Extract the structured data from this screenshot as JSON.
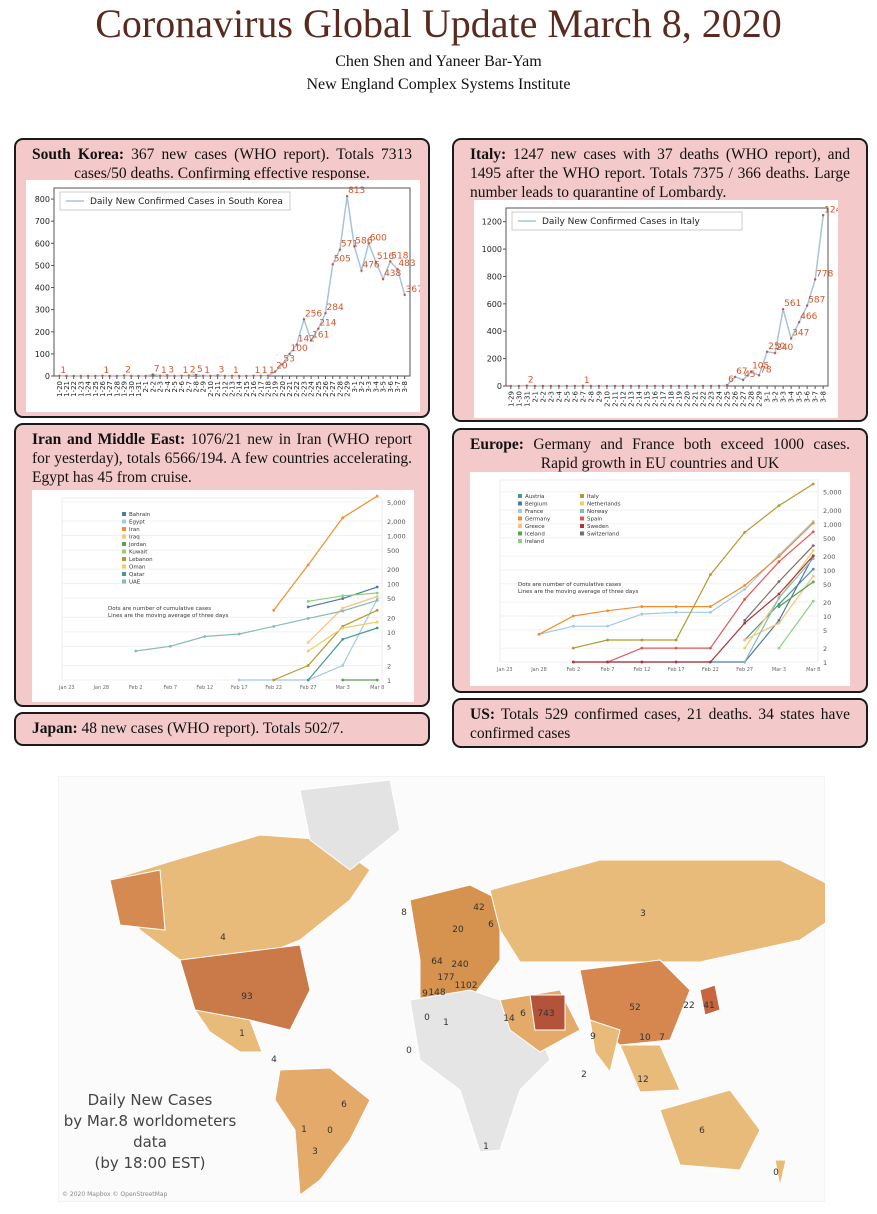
{
  "header": {
    "title": "Coronavirus Global Update March 8, 2020",
    "authors": "Chen Shen and Yaneer Bar-Yam",
    "institute": "New England Complex Systems Institute"
  },
  "panels": [
    {
      "heading": "South Korea:",
      "text": "367 new cases (WHO report). Totals 7313 cases/50 deaths. Confirming effective response."
    },
    {
      "heading": "Italy:",
      "text": "1247 new cases with 37 deaths (WHO report), and 1495 after the WHO report. Totals 7375 / 366 deaths. Large number leads to quarantine of Lombardy."
    },
    {
      "heading": "Iran and Middle East:",
      "text": "1076/21 new in Iran (WHO report for yesterday), totals 6566/194. A few countries accelerating. Egypt has 45 from cruise."
    },
    {
      "heading": "Europe:",
      "text": "Germany and France both exceed 1000 cases. Rapid growth in EU countries and UK"
    },
    {
      "heading": "Japan:",
      "text": "48 new cases (WHO report). Totals 502/7."
    },
    {
      "heading": "US:",
      "text": "Totals 529 confirmed cases, 21 deaths. 34 states have confirmed cases"
    }
  ],
  "chart_data": [
    {
      "type": "line",
      "categories": [
        "1-20",
        "1-21",
        "1-22",
        "1-23",
        "1-24",
        "1-25",
        "1-26",
        "1-27",
        "1-28",
        "1-29",
        "1-30",
        "1-31",
        "2-1",
        "2-2",
        "2-3",
        "2-4",
        "2-5",
        "2-6",
        "2-7",
        "2-8",
        "2-9",
        "2-10",
        "2-11",
        "2-12",
        "2-13",
        "2-14",
        "2-15",
        "2-16",
        "2-17",
        "2-18",
        "2-19",
        "2-20",
        "2-21",
        "2-22",
        "2-23",
        "2-24",
        "2-25",
        "2-26",
        "2-27",
        "2-28",
        "2-29",
        "3-1",
        "3-2",
        "3-3",
        "3-4",
        "3-5",
        "3-6",
        "3-7",
        "3-8"
      ],
      "series": [
        {
          "name": "Daily New Confirmed Cases in South Korea",
          "color": "#a7c3dc",
          "label_color": "#d4562b",
          "values": [
            1,
            0,
            0,
            0,
            0,
            0,
            1,
            0,
            0,
            2,
            0,
            0,
            0,
            7,
            1,
            3,
            0,
            1,
            2,
            5,
            1,
            0,
            3,
            0,
            1,
            0,
            0,
            1,
            1,
            1,
            20,
            53,
            100,
            142,
            256,
            161,
            214,
            284,
            505,
            571,
            813,
            586,
            476,
            600,
            516,
            438,
            518,
            483,
            367
          ]
        }
      ],
      "ylim": [
        0,
        850
      ],
      "yticks": [
        0,
        100,
        200,
        300,
        400,
        500,
        600,
        700,
        800
      ],
      "log_scale": false,
      "legend": "upper left"
    },
    {
      "type": "line",
      "categories": [
        "1-29",
        "1-30",
        "1-31",
        "2-1",
        "2-2",
        "2-3",
        "2-4",
        "2-5",
        "2-6",
        "2-7",
        "2-8",
        "2-9",
        "2-10",
        "2-11",
        "2-12",
        "2-13",
        "2-14",
        "2-15",
        "2-16",
        "2-17",
        "2-18",
        "2-19",
        "2-20",
        "2-21",
        "2-22",
        "2-23",
        "2-24",
        "2-25",
        "2-26",
        "2-27",
        "2-28",
        "2-29",
        "3-1",
        "3-2",
        "3-3",
        "3-4",
        "3-5",
        "3-6",
        "3-7",
        "3-8"
      ],
      "series": [
        {
          "name": "Daily New Confirmed Cases in Italy",
          "color": "#a7c3dc",
          "label_color": "#d4562b",
          "values": [
            0,
            0,
            2,
            0,
            0,
            0,
            0,
            0,
            0,
            1,
            0,
            0,
            0,
            0,
            0,
            0,
            0,
            0,
            0,
            0,
            0,
            0,
            0,
            0,
            0,
            0,
            0,
            6,
            67,
            45,
            105,
            78,
            250,
            240,
            561,
            347,
            466,
            587,
            778,
            1247
          ]
        }
      ],
      "ylim": [
        0,
        1300
      ],
      "yticks": [
        0,
        200,
        400,
        600,
        800,
        1000,
        1200
      ],
      "log_scale": false,
      "legend": "upper left"
    },
    {
      "type": "line",
      "log_scale": true,
      "axis_side": "right",
      "legend": "upper left",
      "annotation": [
        "Dots are number of cumulative cases",
        "Lines are the moving average of three days"
      ],
      "categories": [
        "Jan 23",
        "Jan 28",
        "Feb 2",
        "Feb 7",
        "Feb 12",
        "Feb 17",
        "Feb 22",
        "Feb 27",
        "Mar 3",
        "Mar 8"
      ],
      "ylim": [
        1,
        6000
      ],
      "yticks": [
        1,
        2,
        5,
        10,
        20,
        50,
        100,
        200,
        500,
        {
          "value": 1000,
          "label": "1,000"
        },
        {
          "value": 2000,
          "label": "2,000"
        },
        {
          "value": 5000,
          "label": "5,000"
        }
      ],
      "series": [
        {
          "name": "Bahrain",
          "color": "#4e79a7",
          "values": [
            null,
            null,
            null,
            null,
            null,
            null,
            null,
            33,
            49,
            85
          ]
        },
        {
          "name": "Egypt",
          "color": "#a0cbe8",
          "values": [
            null,
            null,
            null,
            null,
            null,
            1,
            1,
            1,
            2,
            48
          ]
        },
        {
          "name": "Iran",
          "color": "#f28e2b",
          "values": [
            null,
            null,
            null,
            null,
            null,
            null,
            28,
            245,
            2336,
            6566
          ]
        },
        {
          "name": "Iraq",
          "color": "#ffbe7d",
          "values": [
            null,
            null,
            null,
            null,
            null,
            null,
            null,
            6,
            31,
            54
          ]
        },
        {
          "name": "Jordan",
          "color": "#59a14f",
          "values": [
            null,
            null,
            null,
            null,
            null,
            null,
            null,
            null,
            1,
            1
          ]
        },
        {
          "name": "Kuwait",
          "color": "#8cd17d",
          "values": [
            null,
            null,
            null,
            null,
            null,
            null,
            null,
            43,
            56,
            64
          ]
        },
        {
          "name": "Lebanon",
          "color": "#b6992d",
          "values": [
            null,
            null,
            null,
            null,
            null,
            null,
            1,
            2,
            13,
            28
          ]
        },
        {
          "name": "Oman",
          "color": "#f1ce63",
          "values": [
            null,
            null,
            null,
            null,
            null,
            null,
            null,
            4,
            12,
            16
          ]
        },
        {
          "name": "Qatar",
          "color": "#499894",
          "values": [
            null,
            null,
            null,
            null,
            null,
            null,
            null,
            1,
            7,
            12
          ]
        },
        {
          "name": "UAE",
          "color": "#86bcb6",
          "values": [
            null,
            null,
            4,
            5,
            8,
            9,
            13,
            19,
            27,
            45
          ]
        }
      ]
    },
    {
      "type": "line",
      "log_scale": true,
      "axis_side": "right",
      "legend": "upper left",
      "annotation": [
        "Dots are number of cumulative cases",
        "Lines are the moving average of three days"
      ],
      "categories": [
        "Jan 23",
        "Jan 28",
        "Feb 2",
        "Feb 7",
        "Feb 12",
        "Feb 17",
        "Feb 22",
        "Feb 27",
        "Mar 3",
        "Mar 8"
      ],
      "ylim": [
        1,
        9000
      ],
      "yticks": [
        1,
        2,
        5,
        10,
        20,
        50,
        100,
        200,
        500,
        {
          "value": 1000,
          "label": "1,000"
        },
        {
          "value": 2000,
          "label": "2,000"
        },
        {
          "value": 5000,
          "label": "5,000"
        }
      ],
      "series": [
        {
          "name": "Austria",
          "color": "#499894",
          "values": [
            null,
            null,
            null,
            null,
            null,
            null,
            null,
            3,
            18,
            104
          ]
        },
        {
          "name": "Belgium",
          "color": "#4e79a7",
          "values": [
            null,
            null,
            null,
            1,
            1,
            1,
            1,
            1,
            8,
            200
          ]
        },
        {
          "name": "France",
          "color": "#a0cbe8",
          "values": [
            null,
            4,
            6,
            6,
            11,
            12,
            12,
            38,
            212,
            1126
          ]
        },
        {
          "name": "Germany",
          "color": "#f28e2b",
          "values": [
            null,
            4,
            10,
            13,
            16,
            16,
            16,
            46,
            196,
            1040
          ]
        },
        {
          "name": "Greece",
          "color": "#ffbe7d",
          "values": [
            null,
            null,
            null,
            null,
            null,
            null,
            null,
            3,
            7,
            73
          ]
        },
        {
          "name": "Iceland",
          "color": "#59a14f",
          "values": [
            null,
            null,
            null,
            null,
            null,
            null,
            null,
            null,
            16,
            55
          ]
        },
        {
          "name": "Ireland",
          "color": "#8cd17d",
          "values": [
            null,
            null,
            null,
            null,
            null,
            null,
            null,
            null,
            2,
            21
          ]
        },
        {
          "name": "Italy",
          "color": "#b6992d",
          "values": [
            null,
            null,
            2,
            3,
            3,
            3,
            79,
            655,
            2502,
            7375
          ]
        },
        {
          "name": "Netherlands",
          "color": "#f1ce63",
          "values": [
            null,
            null,
            null,
            null,
            null,
            null,
            null,
            2,
            24,
            265
          ]
        },
        {
          "name": "Norway",
          "color": "#86bcb6",
          "values": [
            null,
            null,
            null,
            null,
            null,
            null,
            null,
            1,
            25,
            176
          ]
        },
        {
          "name": "Spain",
          "color": "#e15759",
          "values": [
            null,
            null,
            1,
            1,
            2,
            2,
            2,
            23,
            151,
            673
          ]
        },
        {
          "name": "Sweden",
          "color": "#b0343c",
          "values": [
            null,
            null,
            1,
            1,
            1,
            1,
            1,
            7,
            30,
            203
          ]
        },
        {
          "name": "Switzerland",
          "color": "#79706e",
          "values": [
            null,
            null,
            null,
            null,
            null,
            null,
            null,
            8,
            56,
            337
          ]
        }
      ]
    }
  ],
  "map": {
    "caption": [
      "Daily New Cases",
      "by Mar.8 worldometers",
      "data",
      "(by 18:00 EST)"
    ],
    "attribution": "© 2020 Mapbox © OpenStreetMap",
    "labels": [
      "3",
      "4",
      "93",
      "8",
      "42",
      "20",
      "6",
      "64",
      "240",
      "177",
      "1102",
      "148",
      "9",
      "52",
      "743",
      "22",
      "41",
      "1",
      "0",
      "1",
      "14",
      "6",
      "9",
      "10",
      "7",
      "0",
      "2",
      "12",
      "6",
      "6",
      "1",
      "0",
      "3",
      "1",
      "0",
      "4"
    ]
  }
}
